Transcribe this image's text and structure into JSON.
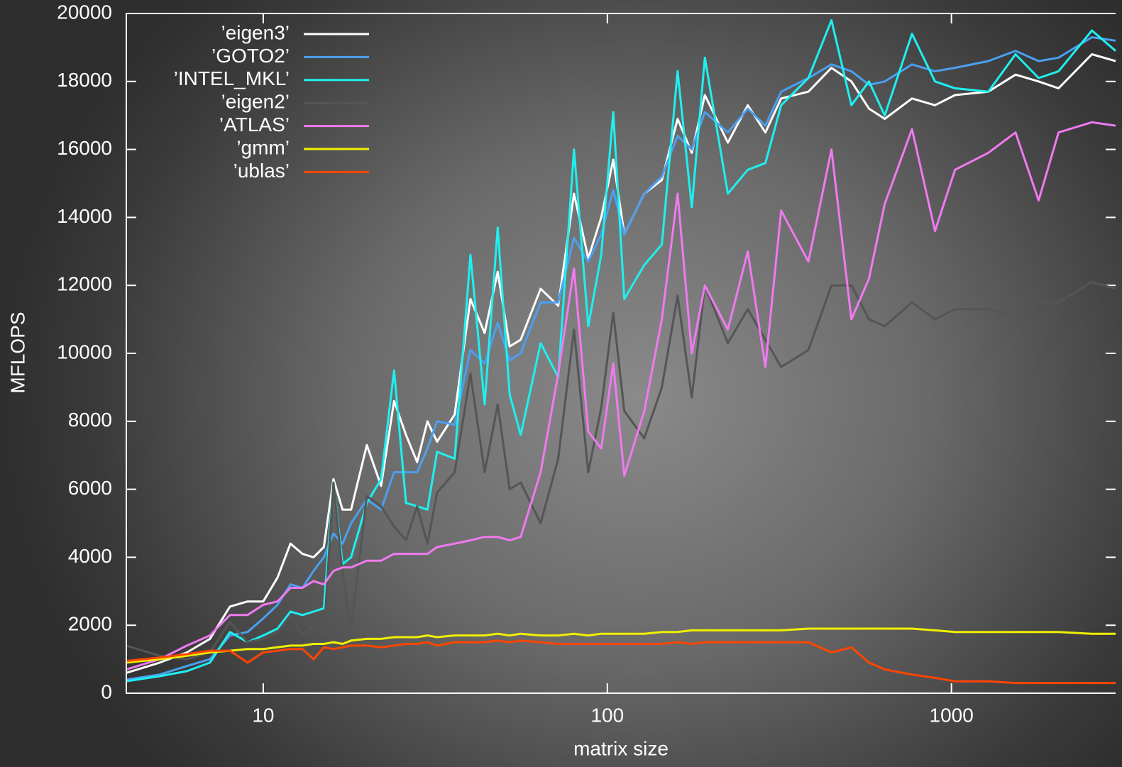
{
  "chart_data": {
    "type": "line",
    "xlabel": "matrix size",
    "ylabel": "MFLOPS",
    "log_x": true,
    "legend": "top-left",
    "xlim": [
      4,
      3000
    ],
    "ylim": [
      0,
      20000
    ],
    "xticks": [
      10,
      100,
      1000
    ],
    "yticks": [
      0,
      2000,
      4000,
      6000,
      8000,
      10000,
      12000,
      14000,
      16000,
      18000,
      20000
    ],
    "x": [
      4,
      5,
      6,
      7,
      8,
      9,
      10,
      11,
      12,
      13,
      14,
      15,
      16,
      17,
      18,
      20,
      22,
      24,
      26,
      28,
      30,
      32,
      36,
      40,
      44,
      48,
      52,
      56,
      64,
      72,
      80,
      88,
      96,
      104,
      112,
      128,
      144,
      160,
      176,
      192,
      224,
      256,
      288,
      320,
      384,
      448,
      512,
      576,
      640,
      768,
      896,
      1024,
      1280,
      1536,
      1792,
      2048,
      2560,
      3000
    ],
    "series": [
      {
        "name": "’eigen3’",
        "color": "#ffffff",
        "values": [
          600,
          900,
          1200,
          1600,
          2550,
          2700,
          2700,
          3400,
          4400,
          4100,
          4000,
          4300,
          6300,
          5400,
          5400,
          7300,
          6100,
          8600,
          7600,
          6800,
          8000,
          7400,
          8200,
          11600,
          10600,
          12400,
          10200,
          10400,
          11900,
          11400,
          14700,
          12800,
          14000,
          15700,
          13500,
          14700,
          15100,
          16900,
          15900,
          17600,
          16200,
          17300,
          16500,
          17500,
          17700,
          18400,
          18000,
          17200,
          16900,
          17500,
          17300,
          17600,
          17700,
          18200,
          18000,
          17800,
          18800,
          18600
        ]
      },
      {
        "name": "’GOTO2’",
        "color": "#4aa0f0",
        "values": [
          400,
          550,
          800,
          1000,
          1700,
          1800,
          2200,
          2600,
          3200,
          3100,
          3600,
          4000,
          4700,
          4400,
          5000,
          5700,
          5400,
          6500,
          6500,
          6500,
          7200,
          8000,
          7900,
          10100,
          9700,
          10900,
          9800,
          10000,
          11500,
          11500,
          13400,
          12700,
          13500,
          14800,
          13500,
          14700,
          15200,
          16400,
          16000,
          17100,
          16500,
          17200,
          16700,
          17700,
          18100,
          18500,
          18300,
          17900,
          18000,
          18500,
          18300,
          18400,
          18600,
          18900,
          18600,
          18700,
          19300,
          19200
        ]
      },
      {
        "name": "’INTEL_MKL’",
        "color": "#1ef0f0",
        "values": [
          350,
          500,
          650,
          900,
          1800,
          1500,
          1700,
          1900,
          2400,
          2300,
          2400,
          2500,
          6200,
          3800,
          4000,
          5600,
          6300,
          9500,
          5600,
          5500,
          5400,
          7100,
          6900,
          12900,
          8500,
          13700,
          8800,
          7600,
          10300,
          9300,
          16000,
          10800,
          12900,
          17100,
          11600,
          12600,
          13200,
          18300,
          14300,
          18700,
          14700,
          15400,
          15600,
          17300,
          18100,
          19800,
          17300,
          18000,
          17000,
          19400,
          18000,
          17800,
          17700,
          18800,
          18100,
          18300,
          19500,
          18900
        ]
      },
      {
        "name": "’eigen2’",
        "color": "#555555",
        "values": [
          1400,
          1100,
          1000,
          1200,
          2100,
          1500,
          1600,
          1800,
          2300,
          1700,
          2000,
          1700,
          6200,
          3500,
          1900,
          5800,
          5500,
          4900,
          4500,
          5500,
          4400,
          5900,
          6500,
          9400,
          6500,
          8500,
          6000,
          6200,
          5000,
          6900,
          10700,
          6500,
          8400,
          11200,
          8300,
          7500,
          9000,
          11700,
          8700,
          12000,
          10300,
          11300,
          10400,
          9600,
          10100,
          12000,
          12000,
          11000,
          10800,
          11500,
          11000,
          11300,
          11300,
          11100,
          11500,
          11500,
          12100,
          11900
        ]
      },
      {
        "name": "’ATLAS’",
        "color": "#f07af0",
        "values": [
          700,
          1000,
          1400,
          1700,
          2300,
          2300,
          2600,
          2700,
          3100,
          3100,
          3300,
          3200,
          3600,
          3700,
          3700,
          3900,
          3900,
          4100,
          4100,
          4100,
          4100,
          4300,
          4400,
          4500,
          4600,
          4600,
          4500,
          4600,
          6500,
          9400,
          12500,
          7700,
          7200,
          9700,
          6400,
          8300,
          11000,
          14700,
          10000,
          12000,
          10700,
          13000,
          9600,
          14200,
          12700,
          16000,
          11000,
          12200,
          14400,
          16600,
          13600,
          15400,
          15900,
          16500,
          14500,
          16500,
          16800,
          16700
        ]
      },
      {
        "name": "’gmm’",
        "color": "#f0f000",
        "values": [
          900,
          1000,
          1100,
          1200,
          1250,
          1300,
          1300,
          1350,
          1400,
          1400,
          1450,
          1450,
          1500,
          1450,
          1550,
          1600,
          1600,
          1650,
          1650,
          1650,
          1700,
          1650,
          1700,
          1700,
          1700,
          1750,
          1700,
          1750,
          1700,
          1700,
          1750,
          1700,
          1750,
          1750,
          1750,
          1750,
          1800,
          1800,
          1850,
          1850,
          1850,
          1850,
          1850,
          1850,
          1900,
          1900,
          1900,
          1900,
          1900,
          1900,
          1850,
          1800,
          1800,
          1800,
          1800,
          1800,
          1750,
          1750
        ]
      },
      {
        "name": "’ublas’",
        "color": "#ff4500",
        "values": [
          950,
          1050,
          1150,
          1250,
          1250,
          900,
          1200,
          1250,
          1300,
          1300,
          1000,
          1350,
          1300,
          1350,
          1400,
          1400,
          1350,
          1400,
          1450,
          1450,
          1500,
          1400,
          1500,
          1500,
          1500,
          1550,
          1500,
          1550,
          1500,
          1450,
          1450,
          1450,
          1450,
          1450,
          1450,
          1450,
          1450,
          1500,
          1450,
          1500,
          1500,
          1500,
          1500,
          1500,
          1500,
          1200,
          1350,
          900,
          700,
          550,
          450,
          350,
          350,
          300,
          300,
          300,
          300,
          300
        ]
      }
    ]
  }
}
